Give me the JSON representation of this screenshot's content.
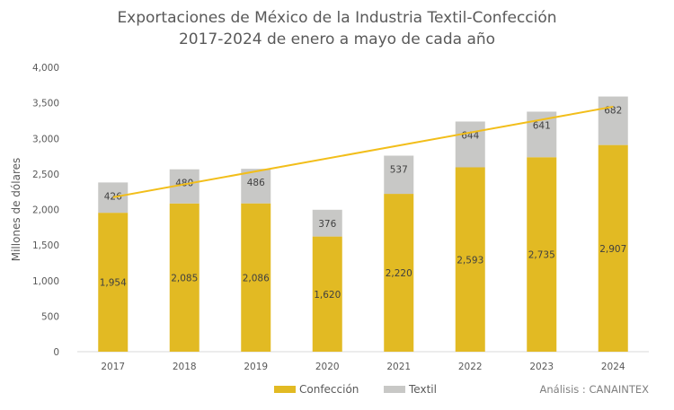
{
  "chart_data": {
    "type": "bar",
    "stacked": true,
    "title": [
      "Exportaciones de México de la Industria Textil-Confección",
      "2017-2024 de enero a mayo de cada año"
    ],
    "ylabel": "Millones de dólares",
    "xlabel": "",
    "ylim": [
      0,
      4000
    ],
    "yticks": [
      0,
      500,
      1000,
      1500,
      2000,
      2500,
      3000,
      3500,
      4000
    ],
    "ytick_labels": [
      "0",
      "500",
      "1,000",
      "1,500",
      "2,000",
      "2,500",
      "3,000",
      "3,500",
      "4,000"
    ],
    "grid": false,
    "legend_position": "bottom",
    "categories": [
      "2017",
      "2018",
      "2019",
      "2020",
      "2021",
      "2022",
      "2023",
      "2024"
    ],
    "series": [
      {
        "name": "Confección",
        "color": "#E2BA23",
        "values": [
          1954,
          2085,
          2086,
          1620,
          2220,
          2593,
          2735,
          2907
        ],
        "labels": [
          "1,954",
          "2,085",
          "2,086",
          "1,620",
          "2,220",
          "2,593",
          "2,735",
          "2,907"
        ]
      },
      {
        "name": "Textil",
        "color": "#C8C8C6",
        "values": [
          426,
          480,
          486,
          376,
          537,
          644,
          641,
          682
        ],
        "labels": [
          "426",
          "480",
          "486",
          "376",
          "537",
          "644",
          "641",
          "682"
        ]
      }
    ],
    "trendline": {
      "type": "linear",
      "series": "total",
      "color": "#F2BE1A"
    },
    "source": "Análisis : CANAINTEX"
  }
}
